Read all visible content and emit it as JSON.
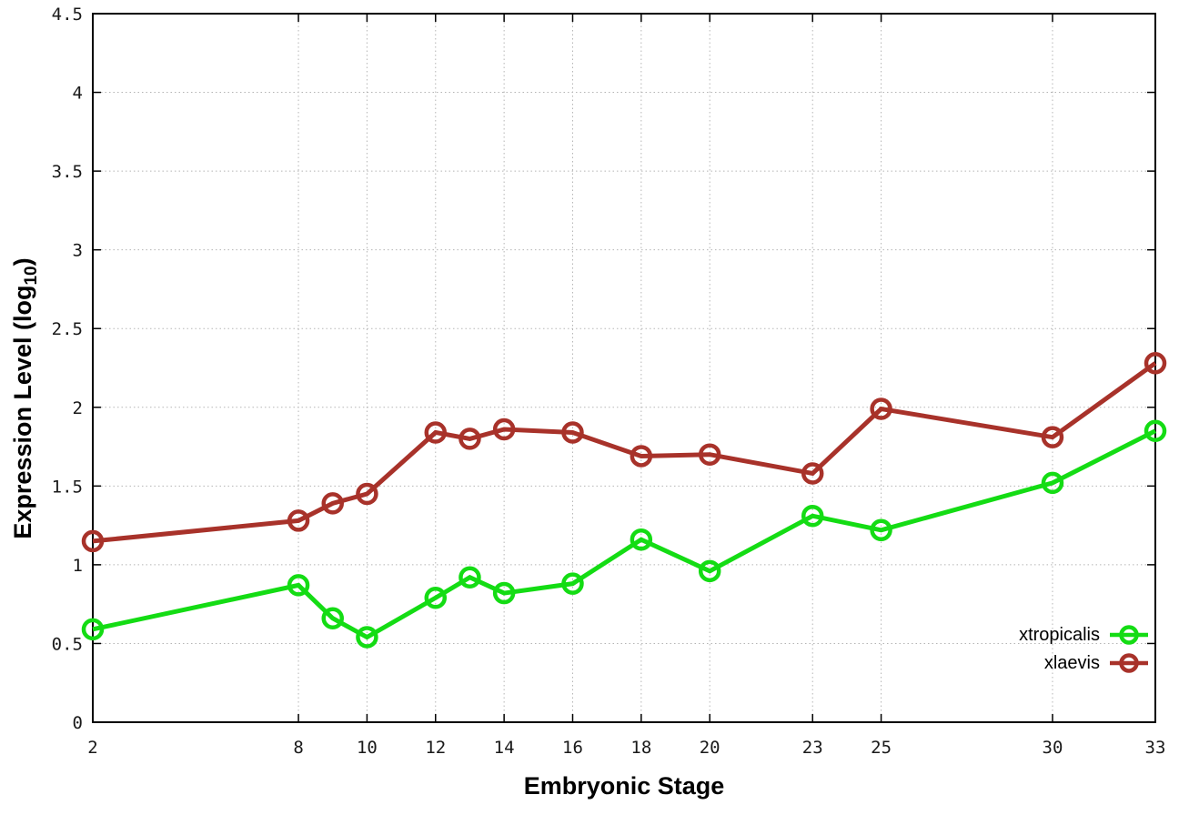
{
  "chart_data": {
    "type": "line",
    "x": [
      2,
      8,
      9,
      10,
      12,
      13,
      14,
      16,
      18,
      20,
      23,
      25,
      30,
      33
    ],
    "series": [
      {
        "name": "xtropicalis",
        "color": "#14dc14",
        "values": [
          0.59,
          0.87,
          0.66,
          0.54,
          0.79,
          0.92,
          0.82,
          0.88,
          1.16,
          0.96,
          1.31,
          1.22,
          1.52,
          1.85
        ]
      },
      {
        "name": "xlaevis",
        "color": "#a8322a",
        "values": [
          1.15,
          1.28,
          1.39,
          1.45,
          1.84,
          1.8,
          1.86,
          1.84,
          1.69,
          1.7,
          1.58,
          1.99,
          1.81,
          2.28
        ]
      }
    ],
    "xlabel": "Embryonic Stage",
    "ylabel_main": "Expression Level (log",
    "ylabel_sub": "10",
    "ylabel_close": ")",
    "xlim": [
      2,
      33
    ],
    "ylim": [
      0,
      4.5
    ],
    "x_ticks": [
      2,
      8,
      10,
      12,
      14,
      16,
      18,
      20,
      23,
      25,
      30,
      33
    ],
    "x_tick_labels": [
      "2",
      "8",
      "10",
      "12",
      "14",
      "16",
      "18",
      "20",
      "23",
      "25",
      "30",
      "33"
    ],
    "y_ticks": [
      0,
      0.5,
      1,
      1.5,
      2,
      2.5,
      3,
      3.5,
      4,
      4.5
    ],
    "y_tick_labels": [
      "0",
      "0.5",
      "1",
      "1.5",
      "2",
      "2.5",
      "3",
      "3.5",
      "4",
      "4.5"
    ],
    "grid": true,
    "grid_color": "#b5b5b5",
    "frame_color": "#000000",
    "legend_position": "bottom-right"
  }
}
